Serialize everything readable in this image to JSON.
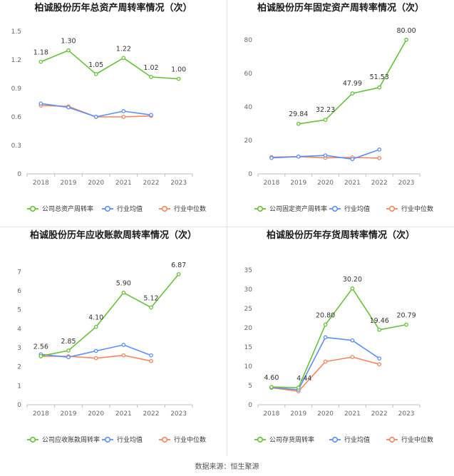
{
  "source": "数据来源：恒生聚源",
  "colors": {
    "company": "#67c23a",
    "avg": "#5b8ff9",
    "median": "#f4865d",
    "axis": "#bfbfbf"
  },
  "chart_data": [
    {
      "type": "line",
      "title": "柏诚股份历年总资产周转率情况（次）",
      "categories": [
        "2018",
        "2019",
        "2020",
        "2021",
        "2022",
        "2023"
      ],
      "ylim": [
        0,
        1.5
      ],
      "yticks": [
        "0",
        "0.3",
        "0.6",
        "0.9",
        "1.2",
        "1.5"
      ],
      "series": [
        {
          "name": "公司总资产周转率",
          "values": [
            1.18,
            1.3,
            1.05,
            1.22,
            1.02,
            1.0
          ],
          "labels": [
            "1.18",
            "1.30",
            "1.05",
            "1.22",
            "1.02",
            "1.00"
          ]
        },
        {
          "name": "行业均值",
          "values": [
            0.74,
            0.7,
            0.6,
            0.66,
            0.62,
            null
          ]
        },
        {
          "name": "行业中位数",
          "values": [
            0.72,
            0.71,
            0.6,
            0.6,
            0.61,
            null
          ]
        }
      ]
    },
    {
      "type": "line",
      "title": "柏诚股份历年固定资产周转率情况（次）",
      "categories": [
        "2018",
        "2019",
        "2020",
        "2021",
        "2022",
        "2023"
      ],
      "ylim": [
        0,
        85
      ],
      "yticks": [
        "0",
        "20",
        "40",
        "60",
        "80"
      ],
      "series": [
        {
          "name": "公司固定资产周转率",
          "values": [
            null,
            29.84,
            32.23,
            47.99,
            51.53,
            80.0
          ],
          "labels": [
            null,
            "29.84",
            "32.23",
            "47.99",
            "51.53",
            "80.00"
          ]
        },
        {
          "name": "行业均值",
          "values": [
            9.5,
            10.3,
            11.0,
            8.8,
            14.5,
            null
          ]
        },
        {
          "name": "行业中位数",
          "values": [
            10.0,
            10.3,
            9.6,
            9.8,
            9.4,
            null
          ]
        }
      ]
    },
    {
      "type": "line",
      "title": "柏诚股份历年应收账款周转率情况（次）",
      "categories": [
        "2018",
        "2019",
        "2020",
        "2021",
        "2022",
        "2023"
      ],
      "ylim": [
        0,
        7.5
      ],
      "yticks": [
        "0",
        "1",
        "2",
        "3",
        "4",
        "5",
        "6",
        "7"
      ],
      "series": [
        {
          "name": "公司应收账款周转率",
          "values": [
            2.56,
            2.85,
            4.1,
            5.9,
            5.12,
            6.87
          ],
          "labels": [
            "2.56",
            "2.85",
            "4.10",
            "5.90",
            "5.12",
            "6.87"
          ]
        },
        {
          "name": "行业均值",
          "values": [
            2.65,
            2.5,
            2.83,
            3.15,
            2.6,
            null
          ]
        },
        {
          "name": "行业中位数",
          "values": [
            2.55,
            2.55,
            2.45,
            2.6,
            2.3,
            null
          ]
        }
      ]
    },
    {
      "type": "line",
      "title": "柏诚股份历年存货周转率情况（次）",
      "categories": [
        "2018",
        "2019",
        "2020",
        "2021",
        "2022",
        "2023"
      ],
      "ylim": [
        0,
        37
      ],
      "yticks": [
        "0",
        "5",
        "10",
        "15",
        "20",
        "25",
        "30",
        "35"
      ],
      "series": [
        {
          "name": "公司存货周转率",
          "values": [
            4.6,
            4.44,
            20.8,
            30.2,
            19.46,
            20.79
          ],
          "labels": [
            "4.60",
            "4.44",
            "20.80",
            "30.20",
            "19.46",
            "20.79"
          ]
        },
        {
          "name": "行业均值",
          "values": [
            4.5,
            3.9,
            17.5,
            16.7,
            12.0,
            null
          ]
        },
        {
          "name": "行业中位数",
          "values": [
            4.4,
            3.5,
            11.2,
            12.4,
            10.5,
            null
          ]
        }
      ]
    }
  ]
}
